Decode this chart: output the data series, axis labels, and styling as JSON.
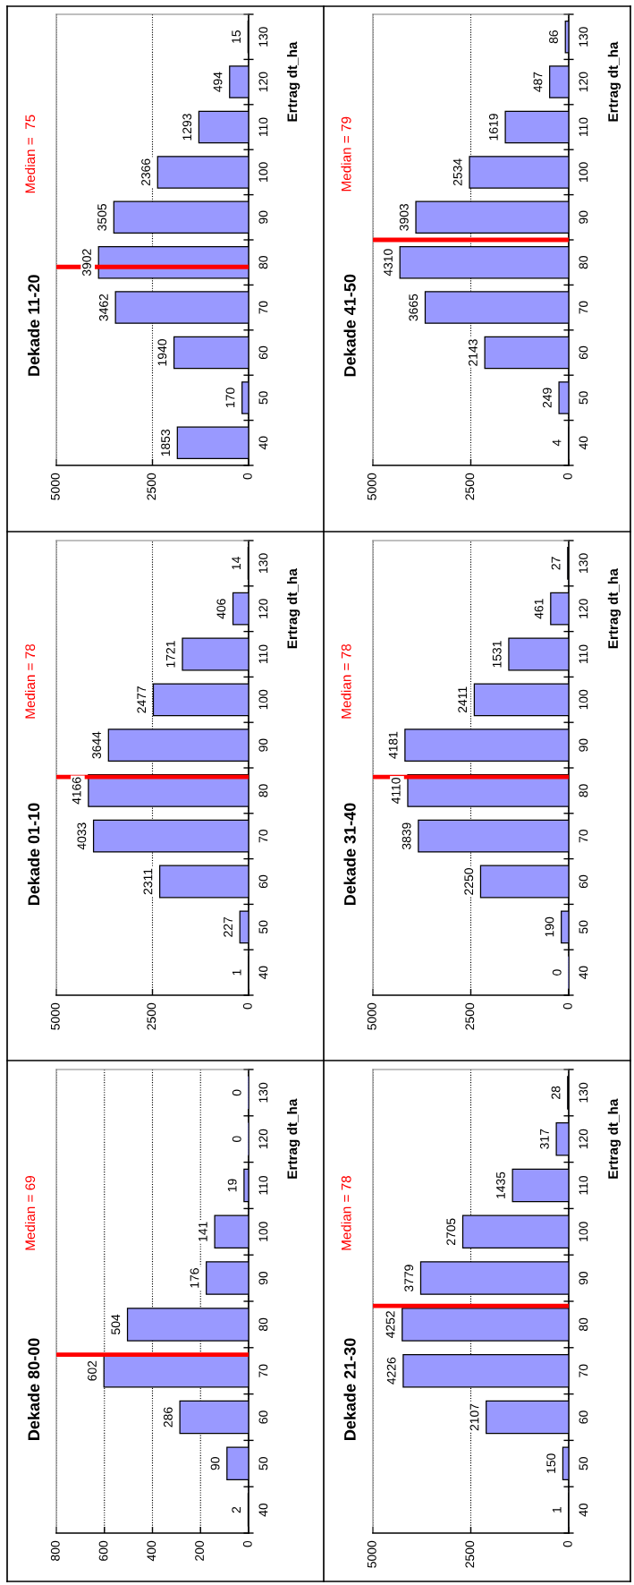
{
  "chart_data": [
    {
      "type": "bar",
      "orientation": "horizontal",
      "title": "Dekade 11-20",
      "ylabel": "Ertrag dt_ha",
      "x": [
        40,
        50,
        60,
        70,
        80,
        90,
        100,
        110,
        120,
        130
      ],
      "series": [
        {
          "color": "#9999ff",
          "values": [
            1853,
            170,
            1940,
            3462,
            3902,
            3505,
            2366,
            1293,
            494,
            15
          ]
        }
      ],
      "data_labels": true,
      "xlim": [
        5000,
        0
      ],
      "xticks": [
        0,
        2500,
        5000
      ],
      "ylim": [
        35,
        135
      ],
      "yticks": [
        40,
        50,
        60,
        70,
        80,
        90,
        100,
        110,
        120,
        130
      ],
      "grid": "x",
      "ref_lines": [
        {
          "axis": "y",
          "value": 79,
          "color": "#ff0000"
        }
      ],
      "annotations": [
        "Median =  75"
      ]
    },
    {
      "type": "bar",
      "orientation": "horizontal",
      "title": "Dekade 41-50",
      "ylabel": "Ertrag dt_ha",
      "x": [
        40,
        50,
        60,
        70,
        80,
        90,
        100,
        110,
        120,
        130
      ],
      "series": [
        {
          "color": "#9999ff",
          "values": [
            4,
            249,
            2143,
            3665,
            4310,
            3903,
            2534,
            1619,
            487,
            86
          ]
        }
      ],
      "data_labels": true,
      "xlim": [
        5000,
        0
      ],
      "xticks": [
        0,
        2500,
        5000
      ],
      "ylim": [
        35,
        135
      ],
      "yticks": [
        40,
        50,
        60,
        70,
        80,
        90,
        100,
        110,
        120,
        130
      ],
      "grid": "x",
      "ref_lines": [
        {
          "axis": "y",
          "value": 85,
          "color": "#ff0000"
        }
      ],
      "annotations": [
        "Median = 79"
      ]
    },
    {
      "type": "bar",
      "orientation": "horizontal",
      "title": "Dekade 01-10",
      "ylabel": "Ertrag dt_ha",
      "x": [
        40,
        50,
        60,
        70,
        80,
        90,
        100,
        110,
        120,
        130
      ],
      "series": [
        {
          "color": "#9999ff",
          "values": [
            1,
            227,
            2311,
            4033,
            4166,
            3644,
            2477,
            1721,
            406,
            14
          ]
        }
      ],
      "data_labels": true,
      "xlim": [
        5000,
        0
      ],
      "xticks": [
        0,
        2500,
        5000
      ],
      "ylim": [
        35,
        135
      ],
      "yticks": [
        40,
        50,
        60,
        70,
        80,
        90,
        100,
        110,
        120,
        130
      ],
      "grid": "x",
      "ref_lines": [
        {
          "axis": "y",
          "value": 83,
          "color": "#ff0000"
        }
      ],
      "annotations": [
        "Median = 78"
      ]
    },
    {
      "type": "bar",
      "orientation": "horizontal",
      "title": "Dekade 31-40",
      "ylabel": "Ertrag dt_ha",
      "x": [
        40,
        50,
        60,
        70,
        80,
        90,
        100,
        110,
        120,
        130
      ],
      "series": [
        {
          "color": "#9999ff",
          "values": [
            0,
            190,
            2250,
            3839,
            4110,
            4181,
            2411,
            1531,
            461,
            27
          ]
        }
      ],
      "data_labels": true,
      "xlim": [
        5000,
        0
      ],
      "xticks": [
        0,
        2500,
        5000
      ],
      "ylim": [
        35,
        135
      ],
      "yticks": [
        40,
        50,
        60,
        70,
        80,
        90,
        100,
        110,
        120,
        130
      ],
      "grid": "x",
      "ref_lines": [
        {
          "axis": "y",
          "value": 83,
          "color": "#ff0000"
        }
      ],
      "annotations": [
        "Median = 78"
      ]
    },
    {
      "type": "bar",
      "orientation": "horizontal",
      "title": "Dekade 80-00",
      "ylabel": "Ertrag dt_ha",
      "x": [
        40,
        50,
        60,
        70,
        80,
        90,
        100,
        110,
        120,
        130
      ],
      "series": [
        {
          "color": "#9999ff",
          "values": [
            2,
            90,
            286,
            602,
            504,
            176,
            141,
            19,
            0,
            0
          ]
        }
      ],
      "data_labels": true,
      "xlim": [
        800,
        0
      ],
      "xticks": [
        0,
        200,
        400,
        600,
        800
      ],
      "ylim": [
        35,
        135
      ],
      "yticks": [
        40,
        50,
        60,
        70,
        80,
        90,
        100,
        110,
        120,
        130
      ],
      "grid": "x",
      "ref_lines": [
        {
          "axis": "y",
          "value": 73.5,
          "color": "#ff0000"
        }
      ],
      "annotations": [
        "Median = 69"
      ]
    },
    {
      "type": "bar",
      "orientation": "horizontal",
      "title": "Dekade 21-30",
      "ylabel": "Ertrag dt_ha",
      "x": [
        40,
        50,
        60,
        70,
        80,
        90,
        100,
        110,
        120,
        130
      ],
      "series": [
        {
          "color": "#9999ff",
          "values": [
            1,
            150,
            2107,
            4226,
            4252,
            3779,
            2705,
            1435,
            317,
            28
          ]
        }
      ],
      "data_labels": true,
      "xlim": [
        5000,
        0
      ],
      "xticks": [
        0,
        2500,
        5000
      ],
      "ylim": [
        35,
        135
      ],
      "yticks": [
        40,
        50,
        60,
        70,
        80,
        90,
        100,
        110,
        120,
        130
      ],
      "grid": "x",
      "ref_lines": [
        {
          "axis": "y",
          "value": 84,
          "color": "#ff0000"
        }
      ],
      "annotations": [
        "Median = 78"
      ]
    }
  ]
}
